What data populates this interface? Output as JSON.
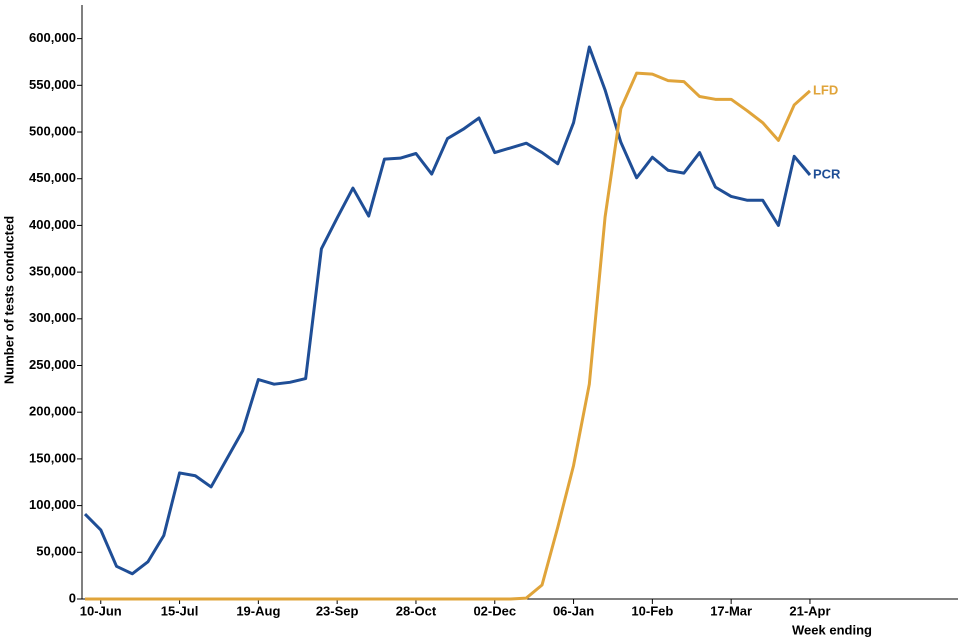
{
  "chart_data": {
    "type": "line",
    "y_label": "Number of tests conducted",
    "x_label": "Week ending",
    "categories": [
      null,
      "10-Jun",
      null,
      null,
      null,
      null,
      "15-Jul",
      null,
      null,
      null,
      null,
      "19-Aug",
      null,
      null,
      null,
      null,
      "23-Sep",
      null,
      null,
      null,
      null,
      "28-Oct",
      null,
      null,
      null,
      null,
      "02-Dec",
      null,
      null,
      null,
      null,
      "06-Jan",
      null,
      null,
      null,
      null,
      "10-Feb",
      null,
      null,
      null,
      null,
      "17-Mar",
      null,
      null,
      null,
      null,
      "21-Apr"
    ],
    "series": [
      {
        "name": "PCR",
        "color": "#1f4e96",
        "values": [
          91000,
          74000,
          35000,
          27000,
          40000,
          68000,
          135000,
          132000,
          120000,
          150000,
          180000,
          235000,
          230000,
          232000,
          236000,
          375000,
          408000,
          440000,
          410000,
          471000,
          472000,
          477000,
          455000,
          493000,
          503000,
          515000,
          478000,
          483000,
          488000,
          478000,
          466000,
          510000,
          591000,
          545000,
          489000,
          451000,
          473000,
          459000,
          456000,
          478000,
          441000,
          431000,
          427000,
          427000,
          400000,
          474000,
          454000
        ]
      },
      {
        "name": "LFD",
        "color": "#e0a43a",
        "values": [
          0,
          0,
          0,
          0,
          0,
          0,
          0,
          0,
          0,
          0,
          0,
          0,
          0,
          0,
          0,
          0,
          0,
          0,
          0,
          0,
          0,
          0,
          0,
          0,
          0,
          0,
          0,
          0,
          1000,
          15000,
          77000,
          143000,
          230000,
          409000,
          525000,
          563000,
          562000,
          555000,
          554000,
          538000,
          535000,
          535000,
          523000,
          510000,
          491000,
          529000,
          544000
        ]
      }
    ],
    "ylim": [
      0,
      636000
    ],
    "yticks": [
      0,
      {
        "value": 50000,
        "label": "50,000"
      },
      {
        "value": 100000,
        "label": "100,000"
      },
      {
        "value": 150000,
        "label": "150,000"
      },
      {
        "value": 200000,
        "label": "200,000"
      },
      {
        "value": 250000,
        "label": "250,000"
      },
      {
        "value": 300000,
        "label": "300,000"
      },
      {
        "value": 350000,
        "label": "350,000"
      },
      {
        "value": 400000,
        "label": "400,000"
      },
      {
        "value": 450000,
        "label": "450,000"
      },
      {
        "value": 500000,
        "label": "500,000"
      },
      {
        "value": 550000,
        "label": "550,000"
      },
      {
        "value": 600000,
        "label": "600,000"
      }
    ],
    "grid": false
  }
}
